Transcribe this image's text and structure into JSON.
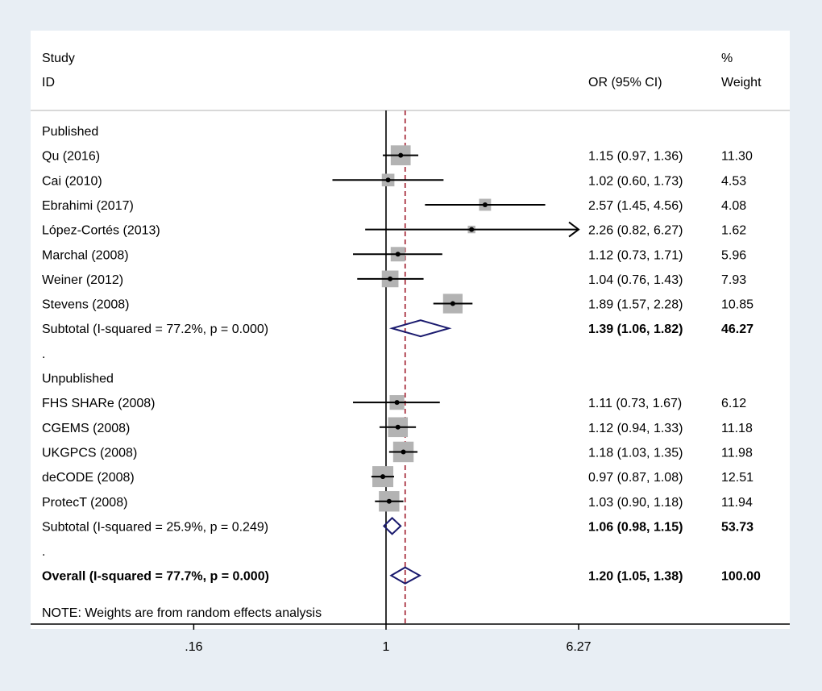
{
  "chart_data": {
    "type": "forest",
    "header": {
      "study_line1": "Study",
      "study_line2": "ID",
      "or_label": "OR (95% CI)",
      "weight_line1": "%",
      "weight_line2": "Weight"
    },
    "x_scale": "log",
    "x_ticks": [
      {
        "value": 0.16,
        "label": ".16"
      },
      {
        "value": 1,
        "label": "1"
      },
      {
        "value": 6.27,
        "label": "6.27"
      }
    ],
    "null_value": 1,
    "overall_estimate": 1.2,
    "rows": [
      {
        "kind": "group",
        "label": "Published"
      },
      {
        "kind": "study",
        "label": "Qu (2016)",
        "or": 1.15,
        "lo": 0.97,
        "hi": 1.36,
        "ci_text": "1.15 (0.97, 1.36)",
        "weight": 11.3,
        "weight_text": "11.30"
      },
      {
        "kind": "study",
        "label": "Cai (2010)",
        "or": 1.02,
        "lo": 0.6,
        "hi": 1.73,
        "ci_text": "1.02 (0.60, 1.73)",
        "weight": 4.53,
        "weight_text": "4.53"
      },
      {
        "kind": "study",
        "label": "Ebrahimi (2017)",
        "or": 2.57,
        "lo": 1.45,
        "hi": 4.56,
        "ci_text": "2.57 (1.45, 4.56)",
        "weight": 4.08,
        "weight_text": "4.08"
      },
      {
        "kind": "study",
        "label": "López-Cortés (2013)",
        "or": 2.26,
        "lo": 0.82,
        "hi": 6.27,
        "ci_text": "2.26 (0.82, 6.27)",
        "weight": 1.62,
        "weight_text": "1.62",
        "arrow": true
      },
      {
        "kind": "study",
        "label": "Marchal (2008)",
        "or": 1.12,
        "lo": 0.73,
        "hi": 1.71,
        "ci_text": "1.12 (0.73, 1.71)",
        "weight": 5.96,
        "weight_text": "5.96"
      },
      {
        "kind": "study",
        "label": "Weiner (2012)",
        "or": 1.04,
        "lo": 0.76,
        "hi": 1.43,
        "ci_text": "1.04 (0.76, 1.43)",
        "weight": 7.93,
        "weight_text": "7.93"
      },
      {
        "kind": "study",
        "label": "Stevens (2008)",
        "or": 1.89,
        "lo": 1.57,
        "hi": 2.28,
        "ci_text": "1.89 (1.57, 2.28)",
        "weight": 10.85,
        "weight_text": "10.85"
      },
      {
        "kind": "subtotal",
        "label": "Subtotal  (I-squared = 77.2%, p = 0.000)",
        "or": 1.39,
        "lo": 1.06,
        "hi": 1.82,
        "ci_text": "1.39 (1.06, 1.82)",
        "weight_text": "46.27"
      },
      {
        "kind": "blank",
        "label": "."
      },
      {
        "kind": "group",
        "label": "Unpublished"
      },
      {
        "kind": "study",
        "label": "FHS SHARe (2008)",
        "or": 1.11,
        "lo": 0.73,
        "hi": 1.67,
        "ci_text": "1.11 (0.73, 1.67)",
        "weight": 6.12,
        "weight_text": "6.12"
      },
      {
        "kind": "study",
        "label": "CGEMS (2008)",
        "or": 1.12,
        "lo": 0.94,
        "hi": 1.33,
        "ci_text": "1.12 (0.94, 1.33)",
        "weight": 11.18,
        "weight_text": "11.18"
      },
      {
        "kind": "study",
        "label": "UKGPCS (2008)",
        "or": 1.18,
        "lo": 1.03,
        "hi": 1.35,
        "ci_text": "1.18 (1.03, 1.35)",
        "weight": 11.98,
        "weight_text": "11.98"
      },
      {
        "kind": "study",
        "label": "deCODE (2008)",
        "or": 0.97,
        "lo": 0.87,
        "hi": 1.08,
        "ci_text": "0.97 (0.87, 1.08)",
        "weight": 12.51,
        "weight_text": "12.51"
      },
      {
        "kind": "study",
        "label": "ProtecT (2008)",
        "or": 1.03,
        "lo": 0.9,
        "hi": 1.18,
        "ci_text": "1.03 (0.90, 1.18)",
        "weight": 11.94,
        "weight_text": "11.94"
      },
      {
        "kind": "subtotal",
        "label": "Subtotal  (I-squared = 25.9%, p = 0.249)",
        "or": 1.06,
        "lo": 0.98,
        "hi": 1.15,
        "ci_text": "1.06 (0.98, 1.15)",
        "weight_text": "53.73"
      },
      {
        "kind": "blank",
        "label": "."
      },
      {
        "kind": "overall",
        "label": "Overall  (I-squared = 77.7%, p = 0.000)",
        "or": 1.2,
        "lo": 1.05,
        "hi": 1.38,
        "ci_text": "1.20 (1.05, 1.38)",
        "weight_text": "100.00"
      }
    ],
    "note": "NOTE: Weights are from random effects analysis",
    "colors": {
      "background": "#e8eef4",
      "panel": "#ffffff",
      "box": "#b3b3b3",
      "diamond": "#1a1a6e",
      "overall_line": "#a01c2c",
      "line": "#000000"
    }
  }
}
